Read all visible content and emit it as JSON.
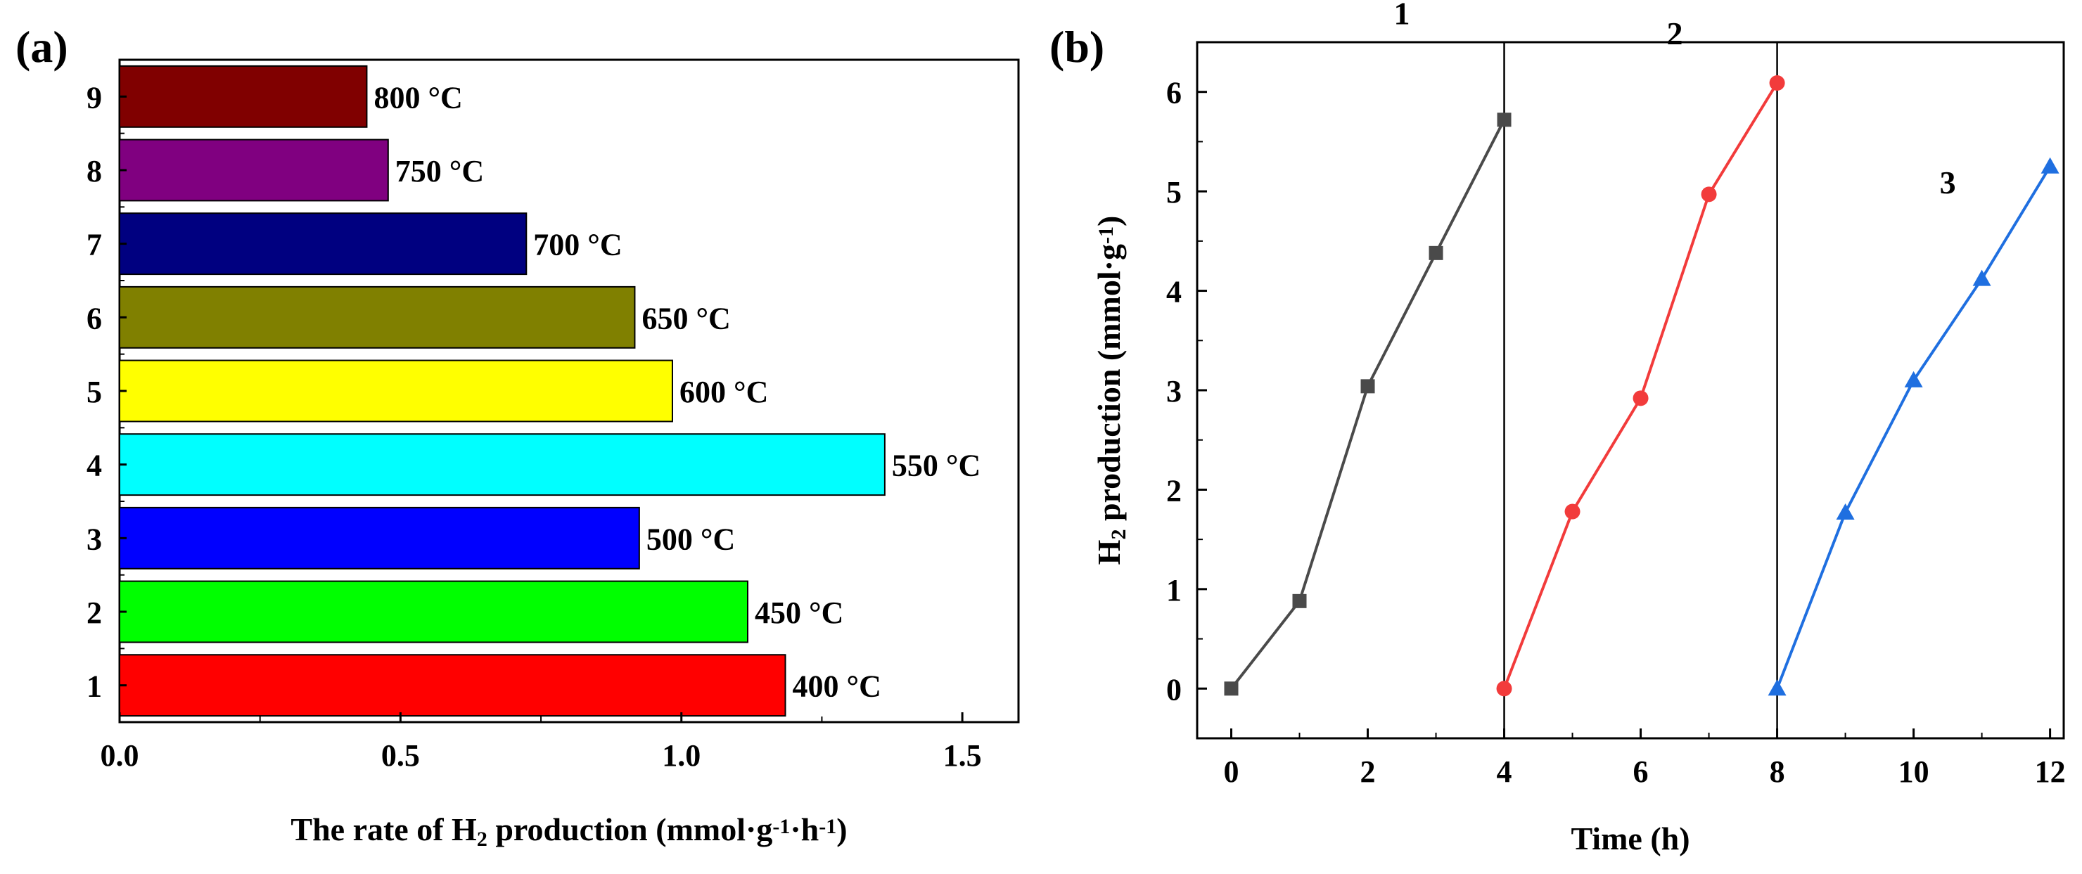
{
  "chart_data": [
    {
      "panel": "(a)",
      "type": "bar",
      "orientation": "horizontal",
      "categories": [
        "1",
        "2",
        "3",
        "4",
        "5",
        "6",
        "7",
        "8",
        "9"
      ],
      "values": [
        1.185,
        1.118,
        0.925,
        1.362,
        0.984,
        0.917,
        0.724,
        0.478,
        0.44
      ],
      "bar_labels": [
        "400 °C",
        "450 °C",
        "500 °C",
        "550 °C",
        "600 °C",
        "650 °C",
        "700 °C",
        "750 °C",
        "800 °C"
      ],
      "colors": [
        "#ff0000",
        "#00ff00",
        "#0000ff",
        "#00ffff",
        "#ffff00",
        "#808000",
        "#000080",
        "#800080",
        "#800000"
      ],
      "xlabel_parts": [
        "The rate of H",
        "2",
        " production (mmol·g",
        "-1",
        "·h",
        "-1",
        ")"
      ],
      "xlim": [
        0,
        1.6
      ],
      "xticks": [
        "0.0",
        "0.5",
        "1.0",
        "1.5"
      ],
      "grid": false
    },
    {
      "panel": "(b)",
      "type": "line",
      "series": [
        {
          "label": "1",
          "marker": "square",
          "color": "#4a4a4a",
          "x": [
            0,
            1,
            2,
            3,
            4
          ],
          "y": [
            0.0,
            0.88,
            3.04,
            4.38,
            5.72
          ]
        },
        {
          "label": "2",
          "marker": "circle",
          "color": "#f23b3b",
          "x": [
            4,
            5,
            6,
            7,
            8
          ],
          "y": [
            0.0,
            1.78,
            2.92,
            4.97,
            6.09
          ]
        },
        {
          "label": "3",
          "marker": "triangle",
          "color": "#1f6fe0",
          "x": [
            8,
            9,
            10,
            11,
            12
          ],
          "y": [
            0.0,
            1.77,
            3.1,
            4.12,
            5.25
          ]
        }
      ],
      "vlines": [
        4,
        8
      ],
      "xlabel": "Time (h)",
      "ylabel_parts": [
        "H",
        "2",
        " production (mmol·g",
        "-1",
        ")"
      ],
      "xlim": [
        -0.5,
        12.2
      ],
      "ylim": [
        -0.5,
        6.5
      ],
      "xticks": [
        "0",
        "2",
        "4",
        "6",
        "8",
        "10",
        "12"
      ],
      "yticks": [
        "0",
        "1",
        "2",
        "3",
        "4",
        "5",
        "6"
      ],
      "grid": false
    }
  ]
}
